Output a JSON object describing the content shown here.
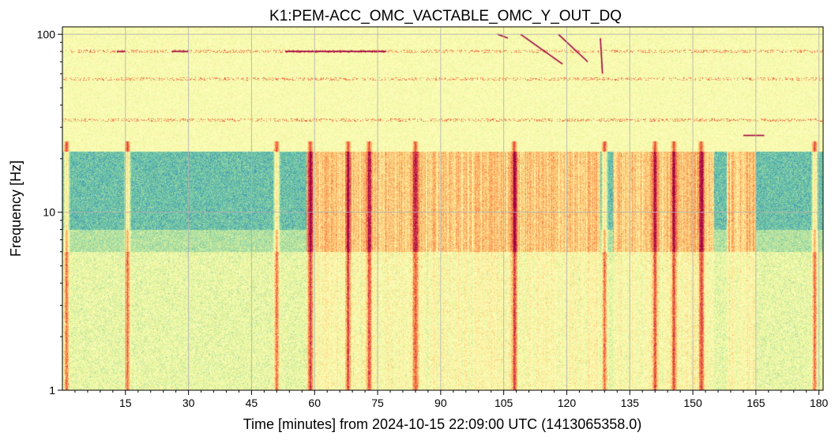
{
  "chart_data": {
    "type": "heatmap",
    "subtype": "spectrogram",
    "title": "K1:PEM-ACC_OMC_VACTABLE_OMC_Y_OUT_DQ",
    "xlabel": "Time [minutes] from 2024-10-15 22:09:00 UTC (1413065358.0)",
    "ylabel": "Frequency [Hz]",
    "x_unit": "minutes",
    "y_unit": "Hz",
    "x_scale": "linear",
    "y_scale": "log",
    "xlim": [
      0,
      181
    ],
    "ylim": [
      1,
      110
    ],
    "x_ticks": [
      15,
      30,
      45,
      60,
      75,
      90,
      105,
      120,
      135,
      150,
      165,
      180
    ],
    "x_tick_labels": [
      "15",
      "30",
      "45",
      "60",
      "75",
      "90",
      "105",
      "120",
      "135",
      "150",
      "165",
      "180"
    ],
    "y_ticks": [
      1,
      10,
      100
    ],
    "y_tick_labels": [
      "1",
      "10",
      "100"
    ],
    "grid": true,
    "colormap": "Spectral_r",
    "colormap_stops": [
      "#3288bd",
      "#66c2a5",
      "#abdda4",
      "#e6f598",
      "#ffffbf",
      "#fee08b",
      "#fdae61",
      "#f46d43",
      "#d53e4f",
      "#9e0142"
    ],
    "features": {
      "quiet_band_hz": [
        6,
        22
      ],
      "quiet_intervals_min": [
        [
          0,
          58
        ],
        [
          128,
          131
        ],
        [
          155,
          158
        ],
        [
          165,
          181
        ]
      ],
      "bright_vertical_bursts_min": [
        1,
        15.5,
        51,
        59,
        68,
        73,
        84,
        107.5,
        129,
        141,
        145.5,
        152,
        179
      ],
      "horizontal_lines_hz": [
        80,
        56,
        33
      ],
      "tones": [
        {
          "t_min": [
            13,
            15
          ],
          "freq_hz": 80
        },
        {
          "t_min": [
            26,
            30
          ],
          "freq_hz": 80
        },
        {
          "t_min": [
            53,
            77
          ],
          "freq_hz": 80
        },
        {
          "t_min": [
            162,
            167
          ],
          "freq_hz": 27
        }
      ],
      "chirps": [
        {
          "t_min": [
            103.5,
            106
          ],
          "freq_hz": [
            100,
            95
          ]
        },
        {
          "t_min": [
            109,
            119
          ],
          "freq_hz": [
            100,
            68
          ]
        },
        {
          "t_min": [
            118,
            125
          ],
          "freq_hz": [
            100,
            70
          ]
        },
        {
          "t_min": [
            128,
            128.5
          ],
          "freq_hz": [
            95,
            60
          ]
        }
      ]
    }
  }
}
